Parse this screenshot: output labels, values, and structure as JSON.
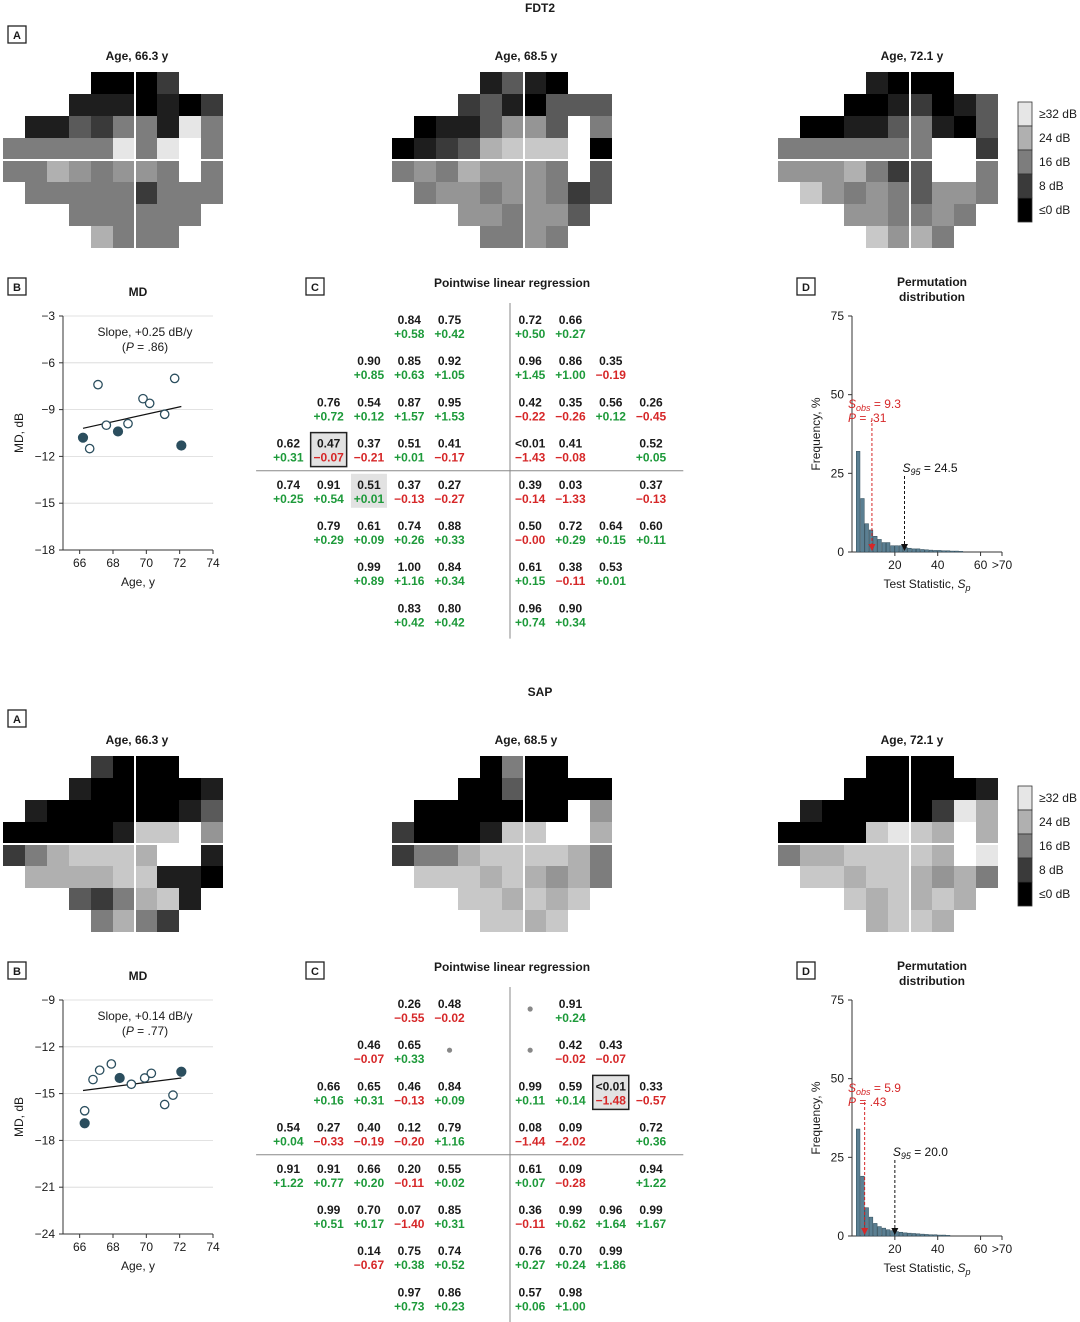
{
  "figure": {
    "panels": [
      {
        "modality": "FDT2",
        "panel_letters": {
          "a": "A",
          "b": "B",
          "c": "C",
          "d": "D"
        },
        "grayscale_maps": {
          "ages": [
            "Age, 66.3 y",
            "Age, 68.5 y",
            "Age, 72.1 y"
          ],
          "legend": [
            "≥32 dB",
            "24 dB",
            "16 dB",
            "8 dB",
            "≤0 dB"
          ],
          "legend_colors": [
            "#e6e6e6",
            "#b0b0b0",
            "#7d7d7d",
            "#3a3a3a",
            "#000000"
          ]
        },
        "md_plot": {
          "title": "MD",
          "xlabel": "Age, y",
          "ylabel": "MD, dB",
          "annotation_line1": "Slope, +0.25 dB/y",
          "annotation_line2": "(P = .86)"
        },
        "regression_title": "Pointwise linear regression",
        "perm_title_line1": "Permutation",
        "perm_title_line2": "distribution",
        "perm_xlabel": "Test Statistic, Sp",
        "perm_ylabel": "Frequency, %",
        "sobs_label": "Sobs = 9.3",
        "p_label": "P = .31",
        "s95_label": "S95 = 24.5"
      },
      {
        "modality": "SAP",
        "panel_letters": {
          "a": "A",
          "b": "B",
          "c": "C",
          "d": "D"
        },
        "grayscale_maps": {
          "ages": [
            "Age, 66.3 y",
            "Age, 68.5 y",
            "Age, 72.1 y"
          ],
          "legend": [
            "≥32 dB",
            "24 dB",
            "16 dB",
            "8 dB",
            "≤0 dB"
          ],
          "legend_colors": [
            "#e6e6e6",
            "#b0b0b0",
            "#7d7d7d",
            "#3a3a3a",
            "#000000"
          ]
        },
        "md_plot": {
          "title": "MD",
          "xlabel": "Age, y",
          "ylabel": "MD, dB",
          "annotation_line1": "Slope, +0.14 dB/y",
          "annotation_line2": "(P = .77)"
        },
        "regression_title": "Pointwise linear regression",
        "perm_title_line1": "Permutation",
        "perm_title_line2": "distribution",
        "perm_xlabel": "Test Statistic, Sp",
        "perm_ylabel": "Frequency, %",
        "sobs_label": "Sobs = 5.9",
        "p_label": "P = .43",
        "s95_label": "S95 = 20.0"
      }
    ]
  },
  "chart_data": [
    {
      "type": "scatter",
      "panel": "FDT2 B",
      "title": "MD",
      "xlabel": "Age, y",
      "ylabel": "MD, dB",
      "xlim": [
        65,
        74
      ],
      "ylim": [
        -18,
        -3
      ],
      "xticks": [
        66,
        68,
        70,
        72,
        74
      ],
      "yticks": [
        -3,
        -6,
        -9,
        -12,
        -15,
        -18
      ],
      "points_open": [
        [
          66.6,
          -11.5
        ],
        [
          67.1,
          -7.4
        ],
        [
          67.6,
          -10.0
        ],
        [
          68.9,
          -9.9
        ],
        [
          69.8,
          -8.3
        ],
        [
          70.2,
          -8.6
        ],
        [
          71.1,
          -9.3
        ],
        [
          71.7,
          -7.0
        ]
      ],
      "points_filled": [
        [
          66.2,
          -10.8
        ],
        [
          68.3,
          -10.4
        ],
        [
          72.1,
          -11.3
        ]
      ],
      "trend": {
        "x": [
          66.2,
          72.1
        ],
        "y": [
          -10.2,
          -8.8
        ]
      }
    },
    {
      "type": "table",
      "panel": "FDT2 C",
      "title": "Pointwise linear regression",
      "rows": [
        {
          "x": [
            -3,
            -2,
            1,
            2
          ],
          "p": [
            "0.84",
            "0.75",
            "0.72",
            "0.66"
          ],
          "slope": [
            "+0.58",
            "+0.42",
            "+0.50",
            "+0.27"
          ]
        },
        {
          "x": [
            -4,
            -3,
            -2,
            1,
            2,
            3
          ],
          "p": [
            "0.90",
            "0.85",
            "0.92",
            "0.96",
            "0.86",
            "0.35"
          ],
          "slope": [
            "+0.85",
            "+0.63",
            "+1.05",
            "+1.45",
            "+1.00",
            "-0.19"
          ]
        },
        {
          "x": [
            -5,
            -4,
            -3,
            -2,
            1,
            2,
            3,
            4
          ],
          "p": [
            "0.76",
            "0.54",
            "0.87",
            "0.95",
            "0.42",
            "0.35",
            "0.56",
            "0.26"
          ],
          "slope": [
            "+0.72",
            "+0.12",
            "+1.57",
            "+1.53",
            "-0.22",
            "-0.26",
            "+0.12",
            "-0.45"
          ]
        },
        {
          "x": [
            -6,
            -5,
            -4,
            -3,
            -2,
            1,
            2,
            4
          ],
          "p": [
            "0.62",
            "0.47",
            "0.37",
            "0.51",
            "0.41",
            "<0.01",
            "0.41",
            "0.52"
          ],
          "slope": [
            "+0.31",
            "-0.07",
            "-0.21",
            "+0.01",
            "-0.17",
            "-1.43",
            "-0.08",
            "+0.05"
          ],
          "boxed": [
            1
          ],
          "shaded": [
            1
          ]
        },
        {
          "x": [
            -6,
            -5,
            -4,
            -3,
            -2,
            1,
            2,
            4
          ],
          "p": [
            "0.74",
            "0.91",
            "0.51",
            "0.37",
            "0.27",
            "0.39",
            "0.03",
            "0.37"
          ],
          "slope": [
            "+0.25",
            "+0.54",
            "+0.01",
            "-0.13",
            "-0.27",
            "-0.14",
            "-1.33",
            "-0.13"
          ],
          "shaded": [
            2
          ]
        },
        {
          "x": [
            -5,
            -4,
            -3,
            -2,
            1,
            2,
            3,
            4
          ],
          "p": [
            "0.79",
            "0.61",
            "0.74",
            "0.88",
            "0.50",
            "0.72",
            "0.64",
            "0.60"
          ],
          "slope": [
            "+0.29",
            "+0.09",
            "+0.26",
            "+0.33",
            "-0.00",
            "+0.29",
            "+0.15",
            "+0.11"
          ]
        },
        {
          "x": [
            -4,
            -3,
            -2,
            1,
            2,
            3
          ],
          "p": [
            "0.99",
            "1.00",
            "0.84",
            "0.61",
            "0.38",
            "0.53"
          ],
          "slope": [
            "+0.89",
            "+1.16",
            "+0.34",
            "+0.15",
            "-0.11",
            "+0.01"
          ]
        },
        {
          "x": [
            -3,
            -2,
            1,
            2
          ],
          "p": [
            "0.83",
            "0.80",
            "0.96",
            "0.90"
          ],
          "slope": [
            "+0.42",
            "+0.42",
            "+0.74",
            "+0.34"
          ]
        }
      ]
    },
    {
      "type": "bar",
      "panel": "FDT2 D",
      "title": "Permutation distribution",
      "xlabel": "Test Statistic, Sp",
      "ylabel": "Frequency, %",
      "xlim": [
        0,
        70
      ],
      "ylim": [
        0,
        75
      ],
      "xticks": [
        "20",
        "40",
        "60",
        ">70"
      ],
      "yticks": [
        0,
        25,
        50,
        75
      ],
      "bin_width": 2,
      "values": [
        32,
        17,
        9,
        7,
        5,
        4,
        3,
        3,
        2,
        2,
        2,
        1.5,
        1.2,
        1,
        1,
        0.8,
        0.7,
        0.6,
        0.5,
        0.5,
        0.4,
        0.4,
        0.3,
        0.3,
        0.2
      ],
      "s_obs": 9.3,
      "s_95": 24.5
    },
    {
      "type": "scatter",
      "panel": "SAP B",
      "title": "MD",
      "xlabel": "Age, y",
      "ylabel": "MD, dB",
      "xlim": [
        65,
        74
      ],
      "ylim": [
        -24,
        -9
      ],
      "xticks": [
        66,
        68,
        70,
        72,
        74
      ],
      "yticks": [
        -9,
        -12,
        -15,
        -18,
        -21,
        -24
      ],
      "points_open": [
        [
          66.3,
          -16.1
        ],
        [
          66.8,
          -14.1
        ],
        [
          67.2,
          -13.5
        ],
        [
          67.9,
          -13.1
        ],
        [
          69.1,
          -14.4
        ],
        [
          69.9,
          -14.0
        ],
        [
          70.3,
          -13.7
        ],
        [
          71.1,
          -15.7
        ],
        [
          71.6,
          -15.1
        ]
      ],
      "points_filled": [
        [
          66.3,
          -16.9
        ],
        [
          68.4,
          -14.0
        ],
        [
          72.1,
          -13.6
        ]
      ],
      "trend": {
        "x": [
          66.2,
          72.1
        ],
        "y": [
          -14.8,
          -14.0
        ]
      }
    },
    {
      "type": "table",
      "panel": "SAP C",
      "title": "Pointwise linear regression",
      "rows": [
        {
          "x": [
            -3,
            -2,
            1,
            2
          ],
          "p": [
            "0.26",
            "0.48",
            "•",
            "0.91"
          ],
          "slope": [
            "-0.55",
            "-0.02",
            "",
            "+0.24"
          ]
        },
        {
          "x": [
            -4,
            -3,
            -2,
            1,
            2,
            3
          ],
          "p": [
            "0.46",
            "0.65",
            "•",
            "•",
            "0.42",
            "0.43"
          ],
          "slope": [
            "-0.07",
            "+0.33",
            "",
            "",
            "-0.02",
            "-0.07"
          ]
        },
        {
          "x": [
            -5,
            -4,
            -3,
            -2,
            1,
            2,
            3,
            4
          ],
          "p": [
            "0.66",
            "0.65",
            "0.46",
            "0.84",
            "0.99",
            "0.59",
            "<0.01",
            "0.33"
          ],
          "slope": [
            "+0.16",
            "+0.31",
            "-0.13",
            "+0.09",
            "+0.11",
            "+0.14",
            "-1.48",
            "-0.57"
          ],
          "boxed": [
            6
          ],
          "shaded": [
            6
          ]
        },
        {
          "x": [
            -6,
            -5,
            -4,
            -3,
            -2,
            1,
            2,
            4
          ],
          "p": [
            "0.54",
            "0.27",
            "0.40",
            "0.12",
            "0.79",
            "0.08",
            "0.09",
            "0.72"
          ],
          "slope": [
            "+0.04",
            "-0.33",
            "-0.19",
            "-0.20",
            "+1.16",
            "-1.44",
            "-2.02",
            "+0.36"
          ]
        },
        {
          "x": [
            -6,
            -5,
            -4,
            -3,
            -2,
            1,
            2,
            4
          ],
          "p": [
            "0.91",
            "0.91",
            "0.66",
            "0.20",
            "0.55",
            "0.61",
            "0.09",
            "0.94"
          ],
          "slope": [
            "+1.22",
            "+0.77",
            "+0.20",
            "-0.11",
            "+0.02",
            "+0.07",
            "-0.28",
            "+1.22"
          ]
        },
        {
          "x": [
            -5,
            -4,
            -3,
            -2,
            1,
            2,
            3,
            4
          ],
          "p": [
            "0.99",
            "0.70",
            "0.07",
            "0.85",
            "0.36",
            "0.99",
            "0.96",
            "0.99"
          ],
          "slope": [
            "+0.51",
            "+0.17",
            "-1.40",
            "+0.31",
            "-0.11",
            "+0.62",
            "+1.64",
            "+1.67"
          ]
        },
        {
          "x": [
            -4,
            -3,
            -2,
            1,
            2,
            3
          ],
          "p": [
            "0.14",
            "0.75",
            "0.74",
            "0.76",
            "0.70",
            "0.99"
          ],
          "slope": [
            "-0.67",
            "+0.38",
            "+0.52",
            "+0.27",
            "+0.24",
            "+1.86"
          ]
        },
        {
          "x": [
            -3,
            -2,
            1,
            2
          ],
          "p": [
            "0.97",
            "0.86",
            "0.57",
            "0.98"
          ],
          "slope": [
            "+0.73",
            "+0.23",
            "+0.06",
            "+1.00"
          ]
        }
      ]
    },
    {
      "type": "bar",
      "panel": "SAP D",
      "title": "Permutation distribution",
      "xlabel": "Test Statistic, Sp",
      "ylabel": "Frequency, %",
      "xlim": [
        0,
        70
      ],
      "ylim": [
        0,
        75
      ],
      "xticks": [
        "20",
        "40",
        "60",
        ">70"
      ],
      "yticks": [
        0,
        25,
        50,
        75
      ],
      "bin_width": 2,
      "values": [
        34,
        19,
        9,
        6,
        4,
        3,
        2.5,
        2,
        1.7,
        1.4,
        1.2,
        1,
        0.9,
        0.8,
        0.7,
        0.6,
        0.5,
        0.4,
        0.4,
        0.3,
        0.3,
        0.2
      ],
      "s_obs": 5.9,
      "s_95": 20.0
    }
  ]
}
